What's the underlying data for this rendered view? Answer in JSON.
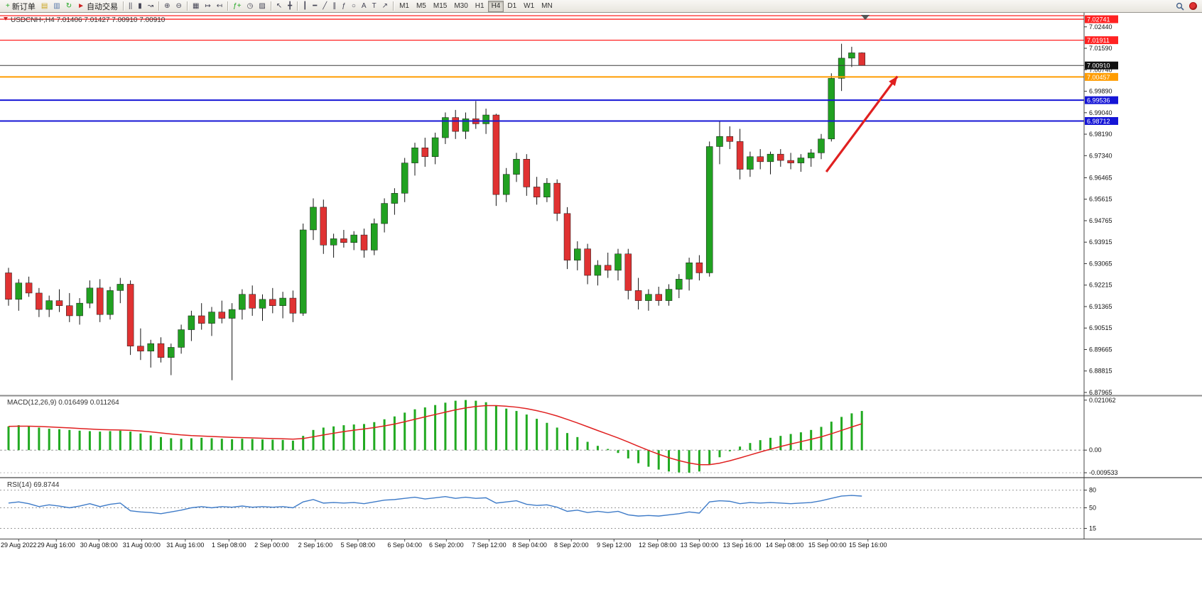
{
  "toolbar": {
    "buttons": [
      {
        "name": "new-order",
        "glyph": "+",
        "glyph_color": "#1fa51f",
        "label": "新订单"
      },
      {
        "name": "market-depth",
        "glyph": "▤",
        "glyph_color": "#caa41f"
      },
      {
        "name": "terminal",
        "glyph": "▥",
        "glyph_color": "#5577aa"
      },
      {
        "name": "refresh",
        "glyph": "↻",
        "glyph_color": "#1fa51f"
      },
      {
        "name": "auto-trading",
        "glyph": "►",
        "glyph_color": "#cc2222",
        "label": "自动交易"
      },
      {
        "sep": true
      },
      {
        "name": "ohlc-bars",
        "glyph": "||"
      },
      {
        "name": "candlesticks",
        "glyph": "▮"
      },
      {
        "name": "line-chart",
        "glyph": "↝"
      },
      {
        "sep": true
      },
      {
        "name": "zoom-in",
        "glyph": "⊕"
      },
      {
        "name": "zoom-out",
        "glyph": "⊖"
      },
      {
        "sep": true
      },
      {
        "name": "tile-windows",
        "glyph": "▦"
      },
      {
        "name": "auto-scroll",
        "glyph": "↦"
      },
      {
        "name": "chart-shift",
        "glyph": "↤"
      },
      {
        "sep": true
      },
      {
        "name": "indicators",
        "glyph": "ƒ+",
        "glyph_color": "#1fa51f"
      },
      {
        "name": "periods",
        "glyph": "◷"
      },
      {
        "name": "templates",
        "glyph": "▨"
      },
      {
        "sep": true
      },
      {
        "name": "cursor",
        "glyph": "↖"
      },
      {
        "name": "crosshair",
        "glyph": "╋"
      },
      {
        "sep": true
      },
      {
        "name": "vertical-line",
        "glyph": "┃"
      },
      {
        "name": "horizontal-line",
        "glyph": "━"
      },
      {
        "name": "trendline",
        "glyph": "╱"
      },
      {
        "name": "equidistant-channel",
        "glyph": "∥"
      },
      {
        "name": "fibonacci",
        "glyph": "ƒ"
      },
      {
        "name": "shapes",
        "glyph": "○"
      },
      {
        "name": "text",
        "glyph": "A"
      },
      {
        "name": "text-label",
        "glyph": "T"
      },
      {
        "name": "arrows",
        "glyph": "↗"
      },
      {
        "sep": true
      }
    ],
    "timeframes": [
      "M1",
      "M5",
      "M15",
      "M30",
      "H1",
      "H4",
      "D1",
      "W1",
      "MN"
    ],
    "active_timeframe": "H4"
  },
  "chart_data": [
    {
      "type": "candlestick",
      "symbol": "USDCNH-",
      "timeframe": "H4",
      "ohlc_label": "USDCNH-,H4 7.01406 7.01427 7.00910 7.00910",
      "current": {
        "open": 7.01406,
        "high": 7.01427,
        "low": 7.0091,
        "close": 7.0091
      },
      "up_color": "#21a121",
      "down_color": "#e03232",
      "y_ticks": [
        "7.02440",
        "7.01590",
        "7.00740",
        "6.99890",
        "6.99040",
        "6.98190",
        "6.97340",
        "6.96465",
        "6.95615",
        "6.94765",
        "6.93915",
        "6.93065",
        "6.92215",
        "6.91365",
        "6.90515",
        "6.89665",
        "6.88815",
        "6.87965"
      ],
      "lines": [
        {
          "price": 7.0288,
          "color": "#ff2222",
          "width": 1.3
        },
        {
          "price": 7.02741,
          "color": "#ff2222",
          "width": 1.3,
          "badge": "7.02741"
        },
        {
          "price": 7.01911,
          "color": "#ff2222",
          "width": 1.3,
          "badge": "7.01911"
        },
        {
          "price": 7.0091,
          "color": "#3a3a3a",
          "width": 1,
          "badge": "7.00910",
          "badge_bg": "#111111"
        },
        {
          "price": 7.00457,
          "color": "#ff9c00",
          "width": 2,
          "badge": "7.00457"
        },
        {
          "price": 6.99536,
          "color": "#1515d6",
          "width": 2,
          "badge": "6.99536"
        },
        {
          "price": 6.98712,
          "color": "#1515d6",
          "width": 2,
          "badge": "6.98712"
        }
      ],
      "arrow": {
        "color": "#e02020",
        "from": {
          "bar": 80.5,
          "price": 6.967
        },
        "to": {
          "bar": 87.5,
          "price": 7.0048
        }
      },
      "candles": [
        [
          6.927,
          6.929,
          6.914,
          6.9165
        ],
        [
          6.9165,
          6.9245,
          6.912,
          6.923
        ],
        [
          6.923,
          6.9255,
          6.9175,
          6.919
        ],
        [
          6.919,
          6.921,
          6.9095,
          6.9125
        ],
        [
          6.9125,
          6.918,
          6.9095,
          6.916
        ],
        [
          6.916,
          6.9205,
          6.9115,
          6.914
        ],
        [
          6.914,
          6.919,
          6.9075,
          6.91
        ],
        [
          6.91,
          6.917,
          6.9065,
          6.915
        ],
        [
          6.915,
          6.924,
          6.913,
          6.921
        ],
        [
          6.921,
          6.9245,
          6.9075,
          6.9105
        ],
        [
          6.9105,
          6.9215,
          6.9085,
          6.92
        ],
        [
          6.92,
          6.925,
          6.915,
          6.9225
        ],
        [
          6.9225,
          6.924,
          6.8945,
          6.898
        ],
        [
          6.898,
          6.905,
          6.8925,
          6.896
        ],
        [
          6.896,
          6.9005,
          6.8895,
          6.899
        ],
        [
          6.899,
          6.9015,
          6.8915,
          6.8935
        ],
        [
          6.8935,
          6.899,
          6.8865,
          6.8975
        ],
        [
          6.8975,
          6.9065,
          6.895,
          6.9045
        ],
        [
          6.9045,
          6.912,
          6.9,
          6.91
        ],
        [
          6.91,
          6.915,
          6.9045,
          6.907
        ],
        [
          6.907,
          6.9135,
          6.902,
          6.9115
        ],
        [
          6.9115,
          6.916,
          6.907,
          6.909
        ],
        [
          6.909,
          6.915,
          6.8845,
          6.9125
        ],
        [
          6.9125,
          6.9205,
          6.9085,
          6.9185
        ],
        [
          6.9185,
          6.922,
          6.91,
          6.913
        ],
        [
          6.913,
          6.9185,
          6.908,
          6.9165
        ],
        [
          6.9165,
          6.921,
          6.911,
          6.914
        ],
        [
          6.914,
          6.9195,
          6.909,
          6.917
        ],
        [
          6.917,
          6.92,
          6.9075,
          6.911
        ],
        [
          6.911,
          6.9465,
          6.91,
          6.944
        ],
        [
          6.944,
          6.9565,
          6.94,
          6.953
        ],
        [
          6.953,
          6.956,
          6.9345,
          6.938
        ],
        [
          6.938,
          6.9425,
          6.933,
          6.9405
        ],
        [
          6.9405,
          6.944,
          6.937,
          6.939
        ],
        [
          6.939,
          6.9435,
          6.936,
          6.942
        ],
        [
          6.942,
          6.9445,
          6.933,
          6.936
        ],
        [
          6.936,
          6.9485,
          6.934,
          6.9465
        ],
        [
          6.9465,
          6.9565,
          6.943,
          6.9545
        ],
        [
          6.9545,
          6.9605,
          6.95,
          6.9585
        ],
        [
          6.9585,
          6.9725,
          6.955,
          6.9705
        ],
        [
          6.9705,
          6.9785,
          6.9655,
          6.9765
        ],
        [
          6.9765,
          6.9805,
          6.969,
          6.973
        ],
        [
          6.973,
          6.9825,
          6.97,
          6.9805
        ],
        [
          6.9805,
          6.9905,
          6.978,
          6.9885
        ],
        [
          6.9885,
          6.9915,
          6.98,
          6.983
        ],
        [
          6.983,
          6.9905,
          6.98,
          6.988
        ],
        [
          6.988,
          6.995,
          6.984,
          6.986
        ],
        [
          6.986,
          6.992,
          6.982,
          6.9895
        ],
        [
          6.9895,
          6.99,
          6.9535,
          6.958
        ],
        [
          6.958,
          6.9685,
          6.955,
          6.966
        ],
        [
          6.966,
          6.9745,
          6.963,
          6.972
        ],
        [
          6.972,
          6.974,
          6.9575,
          6.961
        ],
        [
          6.961,
          6.965,
          6.954,
          6.957
        ],
        [
          6.957,
          6.9645,
          6.955,
          6.9625
        ],
        [
          6.9625,
          6.964,
          6.9475,
          6.9505
        ],
        [
          6.9505,
          6.953,
          6.9285,
          6.932
        ],
        [
          6.932,
          6.9395,
          6.928,
          6.9365
        ],
        [
          6.9365,
          6.9385,
          6.9225,
          6.926
        ],
        [
          6.926,
          6.932,
          6.922,
          6.93
        ],
        [
          6.93,
          6.935,
          6.925,
          6.928
        ],
        [
          6.928,
          6.9365,
          6.924,
          6.9345
        ],
        [
          6.9345,
          6.9365,
          6.9165,
          6.92
        ],
        [
          6.92,
          6.925,
          6.9125,
          6.916
        ],
        [
          6.916,
          6.9205,
          6.912,
          6.9185
        ],
        [
          6.9185,
          6.9215,
          6.914,
          6.916
        ],
        [
          6.916,
          6.9225,
          6.914,
          6.9205
        ],
        [
          6.9205,
          6.9265,
          6.917,
          6.9245
        ],
        [
          6.9245,
          6.933,
          6.92,
          6.931
        ],
        [
          6.931,
          6.934,
          6.924,
          6.927
        ],
        [
          6.927,
          6.979,
          6.9255,
          6.977
        ],
        [
          6.977,
          6.987,
          6.97,
          6.981
        ],
        [
          6.981,
          6.985,
          6.976,
          6.979
        ],
        [
          6.979,
          6.984,
          6.964,
          6.968
        ],
        [
          6.968,
          6.975,
          6.965,
          6.973
        ],
        [
          6.973,
          6.976,
          6.968,
          6.971
        ],
        [
          6.971,
          6.975,
          6.966,
          6.974
        ],
        [
          6.974,
          6.976,
          6.969,
          6.9715
        ],
        [
          6.9715,
          6.9745,
          6.968,
          6.9705
        ],
        [
          6.9705,
          6.974,
          6.967,
          6.9725
        ],
        [
          6.9725,
          6.976,
          6.969,
          6.9745
        ],
        [
          6.9745,
          6.982,
          6.972,
          6.98
        ],
        [
          6.98,
          7.006,
          6.979,
          7.004
        ],
        [
          7.004,
          7.0177,
          6.999,
          7.012
        ],
        [
          7.012,
          7.0165,
          7.0085,
          7.0141
        ],
        [
          7.0141,
          7.0143,
          7.0091,
          7.0091
        ]
      ]
    },
    {
      "type": "bar",
      "title": "MACD(12,26,9)",
      "label": "MACD(12,26,9) 0.016499 0.011264",
      "main_value": 0.016499,
      "signal_value": 0.011264,
      "signal_period": 9,
      "bar_color": "#21aa21",
      "signal_color": "#e02020",
      "y_ticks": [
        {
          "label": "0.021062",
          "value": 0.021062
        },
        {
          "label": "0.00",
          "value": 0
        },
        {
          "label": "-0.009533",
          "value": -0.009533
        }
      ],
      "y_range": [
        -0.011,
        0.0225
      ],
      "values": [
        0.01,
        0.0105,
        0.01,
        0.0095,
        0.009,
        0.0088,
        0.0085,
        0.0082,
        0.008,
        0.0078,
        0.008,
        0.0082,
        0.0078,
        0.007,
        0.0062,
        0.0055,
        0.005,
        0.0048,
        0.005,
        0.0052,
        0.005,
        0.0048,
        0.0046,
        0.0048,
        0.0047,
        0.0045,
        0.0044,
        0.0043,
        0.004,
        0.006,
        0.0085,
        0.0095,
        0.01,
        0.0105,
        0.0108,
        0.011,
        0.0118,
        0.013,
        0.0142,
        0.0158,
        0.0172,
        0.018,
        0.019,
        0.02,
        0.0208,
        0.0211,
        0.0208,
        0.0202,
        0.0188,
        0.0175,
        0.0165,
        0.015,
        0.0132,
        0.0115,
        0.0095,
        0.0072,
        0.0055,
        0.0035,
        0.0018,
        0.0005,
        -0.0012,
        -0.0035,
        -0.0055,
        -0.007,
        -0.0082,
        -0.009,
        -0.0094,
        -0.0095,
        -0.009,
        -0.006,
        -0.003,
        -0.0005,
        0.0015,
        0.003,
        0.0042,
        0.0052,
        0.006,
        0.0068,
        0.0075,
        0.0085,
        0.0098,
        0.012,
        0.014,
        0.0155,
        0.0165
      ]
    },
    {
      "type": "line",
      "title": "RSI(14)",
      "label": "RSI(14) 69.8744",
      "value": 69.8744,
      "line_color": "#3e7bc8",
      "levels": [
        {
          "label": "80",
          "value": 80
        },
        {
          "label": "50",
          "value": 50
        },
        {
          "label": "15",
          "value": 15
        }
      ],
      "y_range": [
        0,
        100
      ],
      "values": [
        58,
        60,
        57,
        52,
        55,
        53,
        50,
        53,
        57,
        52,
        56,
        58,
        45,
        43,
        42,
        40,
        43,
        46,
        50,
        52,
        50,
        52,
        51,
        53,
        51,
        52,
        51,
        52,
        50,
        60,
        64,
        58,
        59,
        58,
        59,
        57,
        60,
        63,
        64,
        66,
        68,
        65,
        67,
        69,
        66,
        68,
        66,
        67,
        58,
        60,
        62,
        56,
        54,
        55,
        51,
        44,
        46,
        42,
        44,
        42,
        44,
        38,
        36,
        37,
        36,
        38,
        40,
        43,
        41,
        60,
        62,
        61,
        57,
        59,
        58,
        59,
        58,
        57,
        58,
        59,
        62,
        66,
        70,
        71,
        69.87
      ]
    }
  ],
  "time_axis": {
    "labels": [
      "29 Aug 2022",
      "29 Aug 16:00",
      "30 Aug 08:00",
      "31 Aug 00:00",
      "31 Aug 16:00",
      "1 Sep 08:00",
      "2 Sep 00:00",
      "2 Sep 16:00",
      "5 Sep 08:00",
      "6 Sep 04:00",
      "6 Sep 20:00",
      "7 Sep 12:00",
      "8 Sep 04:00",
      "8 Sep 20:00",
      "9 Sep 12:00",
      "12 Sep 08:00",
      "13 Sep 00:00",
      "13 Sep 16:00",
      "14 Sep 08:00",
      "15 Sep 00:00",
      "15 Sep 16:00"
    ],
    "bar_positions": [
      1,
      4.7,
      8.9,
      13.1,
      17.4,
      21.7,
      25.9,
      30.2,
      34.4,
      39,
      43.1,
      47.3,
      51.3,
      55.4,
      59.6,
      63.9,
      68,
      72.2,
      76.4,
      80.6,
      84.6
    ]
  }
}
